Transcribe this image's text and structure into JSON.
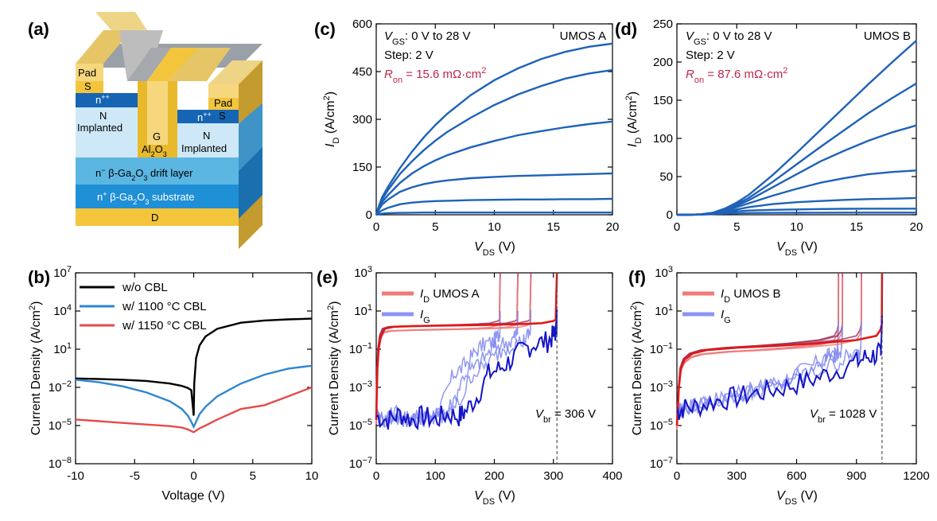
{
  "panels": {
    "a": {
      "label": "(a)",
      "device": {
        "pad_left": "Pad",
        "s_left": "S",
        "npp_left": "n++",
        "n_left": "N",
        "impl_left": "Implanted",
        "pad_right": "Pad",
        "s_right": "S",
        "npp_right": "n++",
        "n_right": "N",
        "impl_right": "Implanted",
        "gate": "G",
        "oxide": "Al2O3",
        "drift": "n− β-Ga2O3 drift layer",
        "substrate": "n+ β-Ga2O3 substrate",
        "drain": "D"
      },
      "colors": {
        "gold": "#f2cf6a",
        "gold_dark": "#c9a23c",
        "grey": "#b8bcc4",
        "grey_dark": "#9097a0",
        "npp": "#1565b4",
        "light": "#cfe8f7",
        "drift": "#5bb6e2",
        "substrate": "#1f8fd6"
      }
    },
    "b": {
      "label": "(b)",
      "xlabel": "Voltage (V)",
      "ylabel": "Current Density (A/cm2)",
      "xticks": [
        "-10",
        "-5",
        "0",
        "5",
        "10"
      ],
      "yticks": [
        "10-8",
        "10-5",
        "10-2",
        "101",
        "104",
        "107"
      ],
      "legend": [
        "w/o CBL",
        "w/ 1100 °C CBL",
        "w/ 1150 °C CBL"
      ]
    },
    "c": {
      "label": "(c)",
      "ann": [
        "VGS: 0 V to 28 V",
        "Step:  2 V",
        "Ron = 15.6 mΩ·cm2"
      ],
      "device": "UMOS A",
      "xlabel": "VDS (V)",
      "ylabel": "ID (A/cm2)",
      "xticks": [
        "0",
        "5",
        "10",
        "15",
        "20"
      ],
      "yticks": [
        "0",
        "150",
        "300",
        "450",
        "600"
      ]
    },
    "d": {
      "label": "(d)",
      "ann": [
        "VGS: 0 V to 28 V",
        "Step:  2 V",
        "Ron = 87.6 mΩ·cm2"
      ],
      "device": "UMOS B",
      "xlabel": "VDS (V)",
      "ylabel": "ID (A/cm2)",
      "xticks": [
        "0",
        "5",
        "10",
        "15",
        "20"
      ],
      "yticks": [
        "0",
        "50",
        "100",
        "150",
        "200",
        "250"
      ]
    },
    "e": {
      "label": "(e)",
      "legend": [
        "ID UMOS A",
        "IG"
      ],
      "vbr": "Vbr = 306 V",
      "xlabel": "VDS (V)",
      "ylabel": "Current Density (A/cm2)",
      "xticks": [
        "0",
        "100",
        "200",
        "300",
        "400"
      ],
      "yticks": [
        "10-7",
        "10-5",
        "10-3",
        "10-1",
        "101",
        "103"
      ]
    },
    "f": {
      "label": "(f)",
      "legend": [
        "ID UMOS B",
        "IG"
      ],
      "vbr": "Vbr = 1028 V",
      "xlabel": "VDS (V)",
      "ylabel": "Current Density (A/cm2)",
      "xticks": [
        "0",
        "300",
        "600",
        "900",
        "1200"
      ],
      "yticks": [
        "10-7",
        "10-5",
        "10-3",
        "10-1",
        "101",
        "103"
      ]
    }
  },
  "colors": {
    "black": "#000000",
    "blue": "#2f86d0",
    "red": "#e64b4b",
    "curve": "#1f62b8",
    "pink": "#ef7a7a",
    "red2": "#e01818",
    "maroon": "#a03058",
    "lightblue": "#7e86ee",
    "darkblue": "#1414c8"
  },
  "chart_data": [
    {
      "type": "line",
      "panel": "b",
      "yscale": "log",
      "xlabel": "Voltage (V)",
      "ylabel": "Current Density (A/cm2)",
      "xlim": [
        -10,
        10
      ],
      "ylim": [
        1e-08,
        10000000.0
      ],
      "legend_position": "top-left",
      "series": [
        {
          "name": "w/o CBL",
          "color": "#000000",
          "x": [
            -10,
            -8,
            -6,
            -4,
            -2,
            -1,
            -0.5,
            -0.2,
            0,
            0.05,
            0.2,
            0.5,
            1,
            2,
            4,
            6,
            8,
            10
          ],
          "y": [
            0.05,
            0.045,
            0.04,
            0.032,
            0.02,
            0.013,
            0.009,
            0.006,
            6e-05,
            0.02,
            2,
            20,
            100,
            400,
            1200,
            1800,
            2200,
            2500
          ]
        },
        {
          "name": "w/ 1100 °C CBL",
          "color": "#2f86d0",
          "x": [
            -10,
            -8,
            -6,
            -4,
            -2,
            -1,
            -0.5,
            -0.2,
            0,
            0.2,
            0.5,
            1,
            2,
            4,
            6,
            8,
            10
          ],
          "y": [
            0.04,
            0.025,
            0.012,
            0.004,
            0.0008,
            0.0002,
            6e-05,
            2e-05,
            8e-06,
            2e-05,
            8e-05,
            0.0003,
            0.002,
            0.02,
            0.1,
            0.3,
            0.5
          ]
        },
        {
          "name": "w/ 1150 °C CBL",
          "color": "#e64b4b",
          "x": [
            -10,
            -8,
            -6,
            -4,
            -2,
            -1,
            -0.5,
            0,
            0.5,
            1,
            2,
            4,
            6,
            8,
            10
          ],
          "y": [
            3e-05,
            2.2e-05,
            1.6e-05,
            1.2e-05,
            9e-06,
            7e-06,
            5e-06,
            3e-06,
            6e-06,
            1e-05,
            3e-05,
            0.0002,
            0.0004,
            0.002,
            0.01
          ]
        }
      ]
    },
    {
      "type": "line",
      "panel": "c",
      "xlabel": "VDS (V)",
      "ylabel": "ID (A/cm2)",
      "xlim": [
        0,
        20
      ],
      "ylim": [
        0,
        600
      ],
      "x": [
        0,
        0.25,
        0.5,
        1,
        2,
        3,
        4,
        5,
        6,
        8,
        10,
        12,
        14,
        16,
        18,
        20
      ],
      "series": [
        {
          "y": [
            0,
            2,
            3.5,
            5,
            6,
            6.5,
            7,
            7,
            7,
            7,
            7,
            7,
            7,
            7,
            7,
            7
          ]
        },
        {
          "y": [
            0,
            8,
            14,
            22,
            33,
            38,
            41,
            43,
            44,
            46,
            47,
            48,
            48,
            49,
            49,
            50
          ]
        },
        {
          "y": [
            0,
            18,
            32,
            48,
            72,
            86,
            96,
            103,
            108,
            115,
            119,
            122,
            124,
            126,
            128,
            130
          ]
        },
        {
          "y": [
            0,
            22,
            40,
            62,
            100,
            129,
            152,
            171,
            187,
            212,
            232,
            250,
            263,
            275,
            285,
            293
          ]
        },
        {
          "y": [
            0,
            27,
            48,
            78,
            128,
            167,
            202,
            233,
            260,
            305,
            345,
            378,
            405,
            428,
            444,
            455
          ]
        },
        {
          "y": [
            0,
            30,
            55,
            88,
            146,
            197,
            242,
            282,
            317,
            376,
            423,
            460,
            490,
            512,
            528,
            538
          ]
        }
      ]
    },
    {
      "type": "line",
      "panel": "d",
      "xlabel": "VDS (V)",
      "ylabel": "ID (A/cm2)",
      "xlim": [
        0,
        20
      ],
      "ylim": [
        0,
        250
      ],
      "x": [
        0,
        1,
        2,
        3,
        4,
        5,
        6,
        8,
        10,
        12,
        14,
        16,
        18,
        20
      ],
      "series": [
        {
          "y": [
            0,
            0,
            0.2,
            0.8,
            1.5,
            2,
            2.3,
            2.5,
            2.6,
            2.7,
            2.8,
            2.8,
            2.8,
            2.8
          ]
        },
        {
          "y": [
            0,
            0,
            0.3,
            1,
            3,
            4.5,
            5.5,
            6.5,
            7,
            7.5,
            7.8,
            8,
            8,
            8
          ]
        },
        {
          "y": [
            0,
            0,
            0.4,
            1.5,
            4,
            7,
            10,
            14,
            16.5,
            18,
            19.5,
            20.5,
            21,
            22
          ]
        },
        {
          "y": [
            0,
            0,
            0.5,
            2,
            5,
            10,
            15,
            25,
            34,
            42,
            48,
            53,
            56,
            58
          ]
        },
        {
          "y": [
            0,
            0,
            0.5,
            2.3,
            6,
            12,
            19,
            36,
            53,
            70,
            84,
            97,
            108,
            117
          ]
        },
        {
          "y": [
            0,
            0,
            0.6,
            2.5,
            7,
            14,
            22,
            43,
            66,
            89,
            111,
            133,
            153,
            172
          ]
        },
        {
          "y": [
            0,
            0,
            0.6,
            2.7,
            8,
            16,
            26,
            52,
            81,
            111,
            141,
            171,
            200,
            228
          ]
        }
      ]
    },
    {
      "type": "line",
      "panel": "e",
      "yscale": "log",
      "xlabel": "VDS (V)",
      "ylabel": "Current Density (A/cm2)",
      "xlim": [
        0,
        400
      ],
      "ylim": [
        1e-07,
        1000.0
      ],
      "breakdown_voltage": 306,
      "legend_position": "top-left",
      "series": [
        {
          "name": "ID UMOS A",
          "color": "#e01818",
          "x": [
            0,
            2,
            4,
            8,
            15,
            30,
            60,
            100,
            150,
            200,
            250,
            280,
            300,
            304,
            305,
            306
          ],
          "y": [
            2e-05,
            0.01,
            0.1,
            0.5,
            1.2,
            1.5,
            1.6,
            1.7,
            1.8,
            1.9,
            2.1,
            2.3,
            3,
            3.5,
            100,
            1000
          ]
        },
        {
          "name": "IG",
          "color": "#1414c8",
          "x": [
            0,
            20,
            40,
            60,
            80,
            100,
            120,
            140,
            150,
            170,
            190,
            210,
            230,
            250,
            270,
            290,
            300,
            305,
            306
          ],
          "y": [
            3e-05,
            2e-05,
            4e-05,
            2e-05,
            3e-05,
            2e-05,
            4e-05,
            3e-05,
            5e-05,
            0.0003,
            0.005,
            0.01,
            0.03,
            0.1,
            0.2,
            0.25,
            0.5,
            1,
            10
          ]
        }
      ]
    },
    {
      "type": "line",
      "panel": "f",
      "yscale": "log",
      "xlabel": "VDS (V)",
      "ylabel": "Current Density (A/cm2)",
      "xlim": [
        0,
        1200
      ],
      "ylim": [
        1e-07,
        1000.0
      ],
      "breakdown_voltage": 1028,
      "legend_position": "top-left",
      "series": [
        {
          "name": "ID UMOS B",
          "color": "#e01818",
          "x": [
            0,
            5,
            10,
            20,
            40,
            80,
            150,
            300,
            500,
            700,
            900,
            1000,
            1020,
            1027,
            1028
          ],
          "y": [
            1e-05,
            0.0001,
            0.001,
            0.01,
            0.03,
            0.06,
            0.09,
            0.12,
            0.15,
            0.2,
            0.3,
            0.5,
            1,
            2,
            1000
          ]
        },
        {
          "name": "IG",
          "color": "#1414c8",
          "x": [
            0,
            30,
            100,
            200,
            300,
            400,
            500,
            600,
            700,
            800,
            900,
            950,
            1000,
            1020,
            1025,
            1028
          ],
          "y": [
            5e-05,
            8e-05,
            0.0001,
            0.0002,
            0.0003,
            0.0005,
            0.0008,
            0.0015,
            0.003,
            0.008,
            0.02,
            0.04,
            0.05,
            0.06,
            0.5,
            2
          ]
        }
      ]
    }
  ]
}
